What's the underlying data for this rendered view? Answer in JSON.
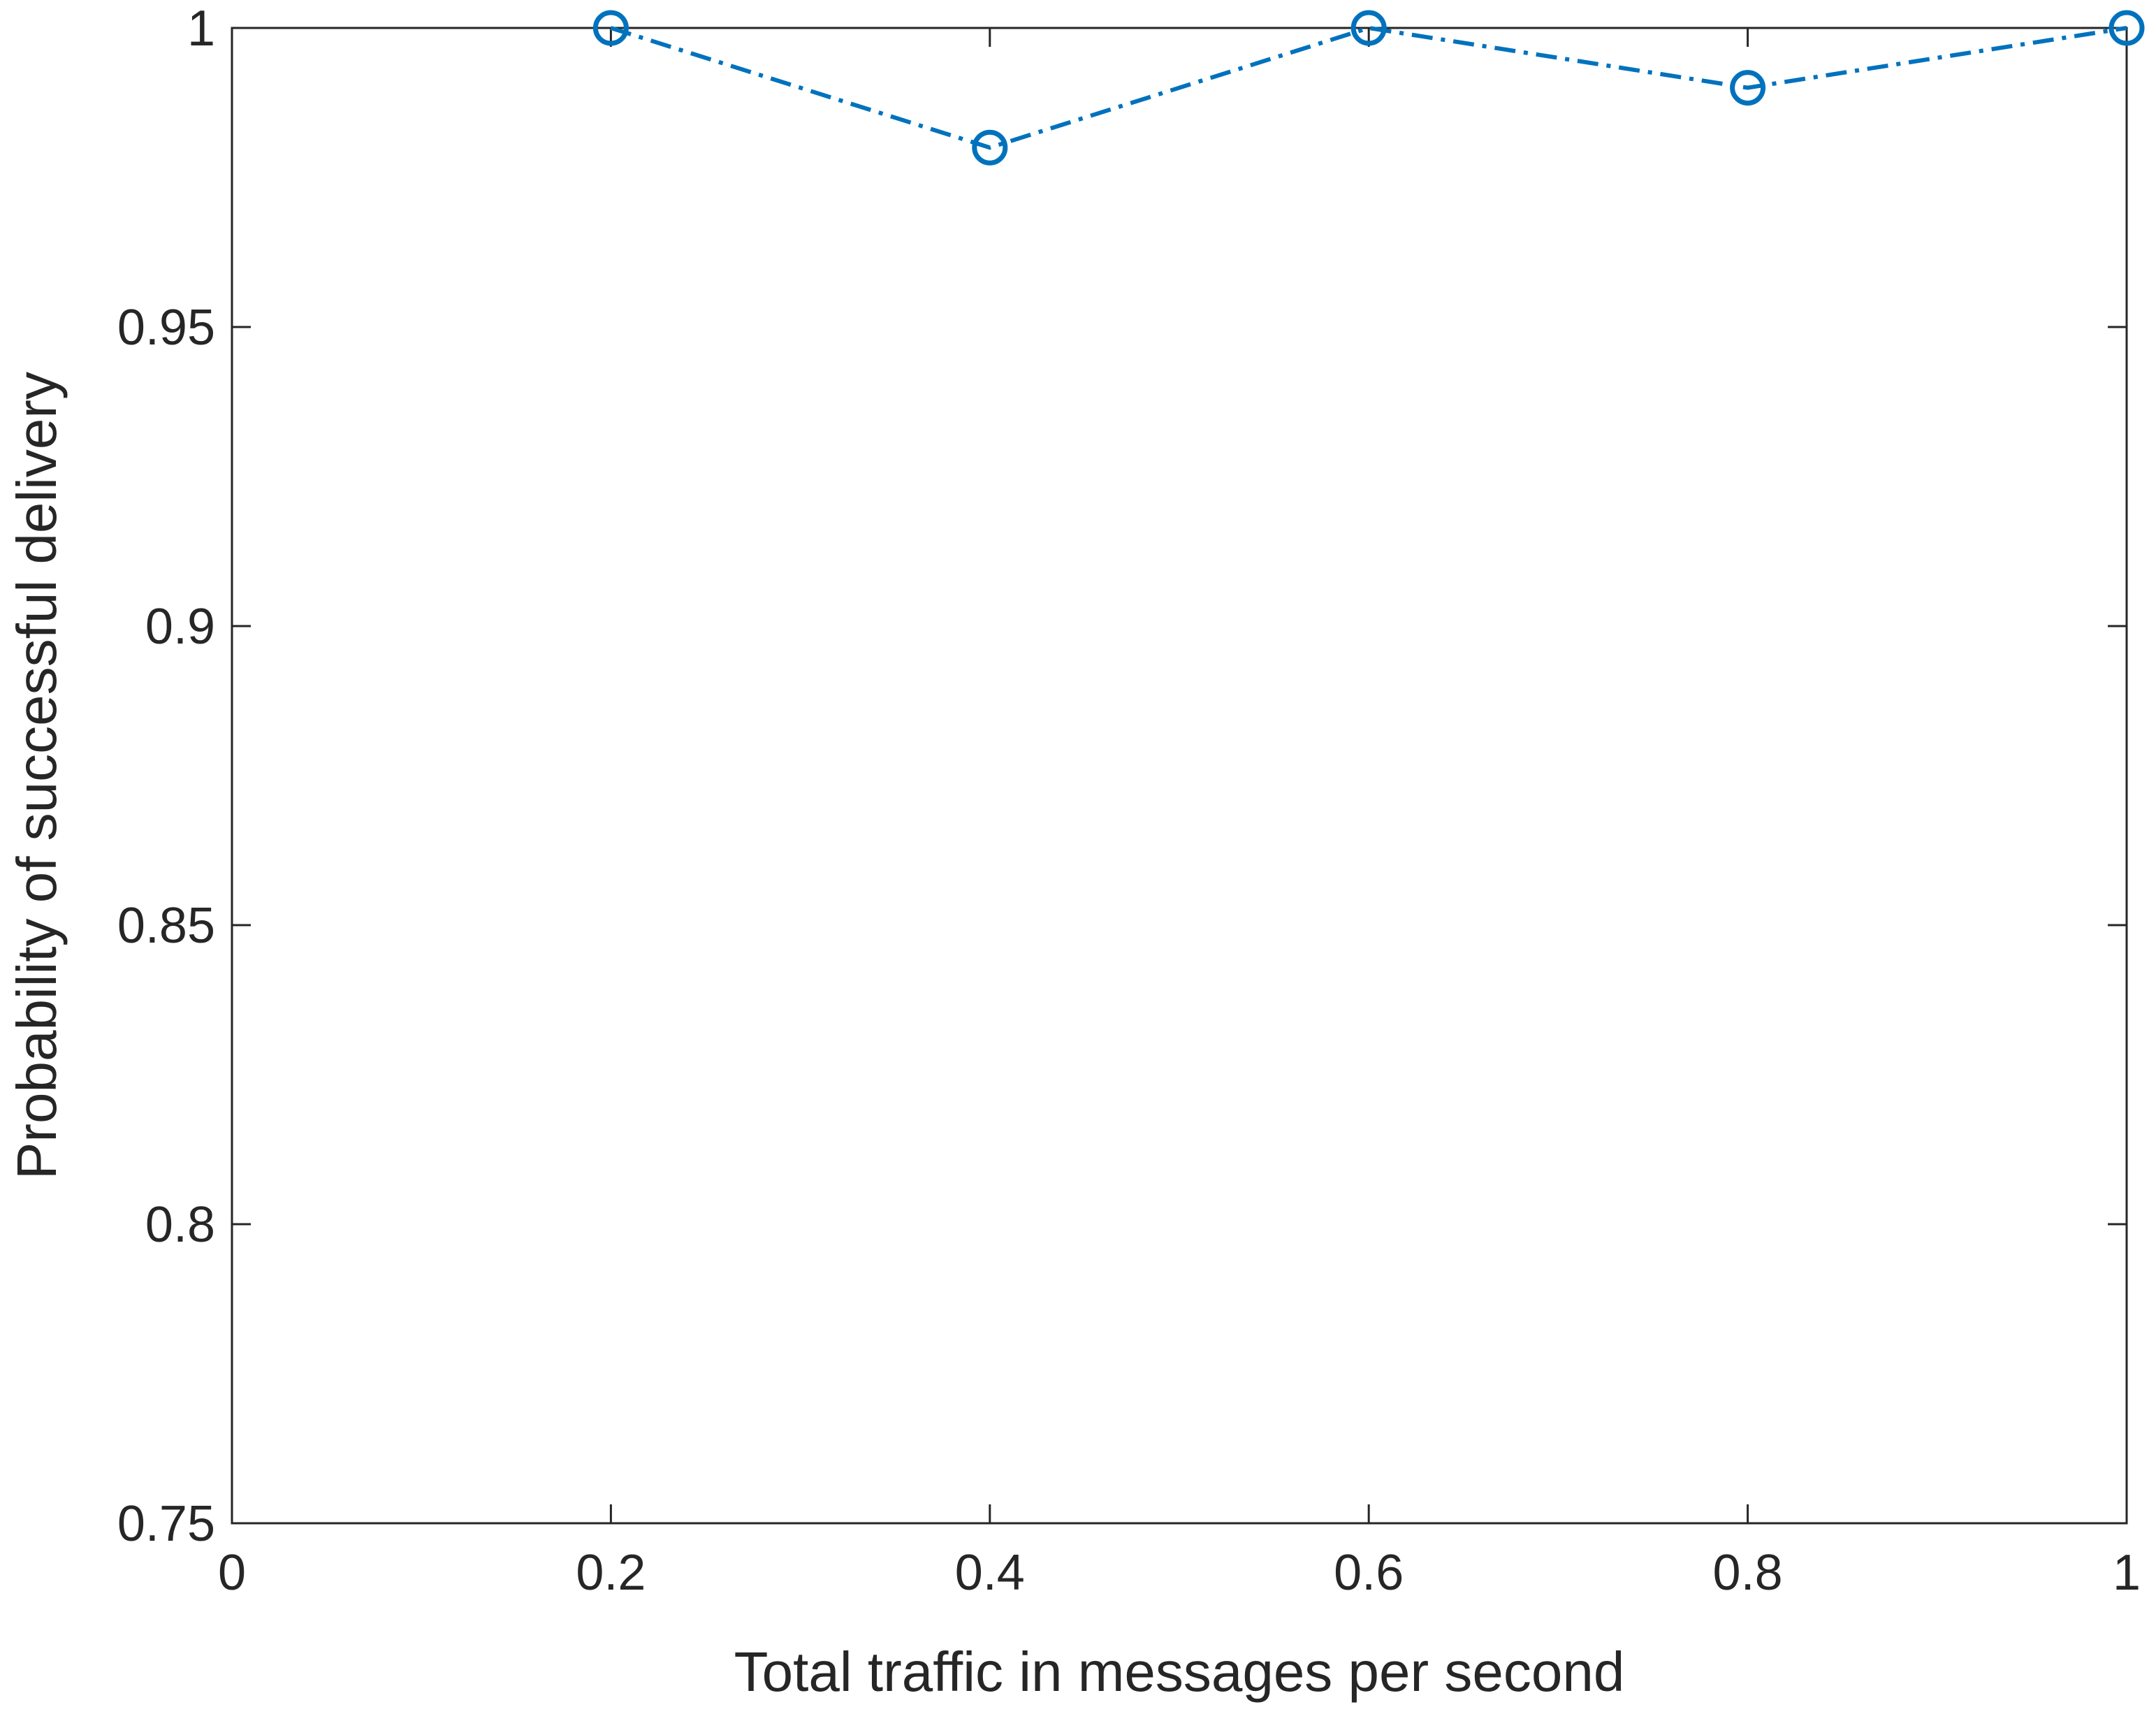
{
  "chart_data": {
    "type": "line",
    "title": "",
    "xlabel": "Total traffic in messages per second",
    "ylabel": "Probability of successful delivery",
    "xlim": [
      0,
      1
    ],
    "ylim": [
      0.75,
      1
    ],
    "x_ticks": [
      0,
      0.2,
      0.4,
      0.6,
      0.8,
      1
    ],
    "x_tick_labels": [
      "0",
      "0.2",
      "0.4",
      "0.6",
      "0.8",
      "1"
    ],
    "y_ticks": [
      0.75,
      0.8,
      0.85,
      0.9,
      0.95,
      1
    ],
    "y_tick_labels": [
      "0.75",
      "0.8",
      "0.85",
      "0.9",
      "0.95",
      "1"
    ],
    "grid": false,
    "series": [
      {
        "x": [
          0.2,
          0.4,
          0.6,
          0.8,
          1.0
        ],
        "y": [
          1.0,
          0.98,
          1.0,
          0.99,
          1.0
        ],
        "color": "#0072BD",
        "line_style": "dash-dot",
        "marker": "circle-open"
      }
    ]
  }
}
